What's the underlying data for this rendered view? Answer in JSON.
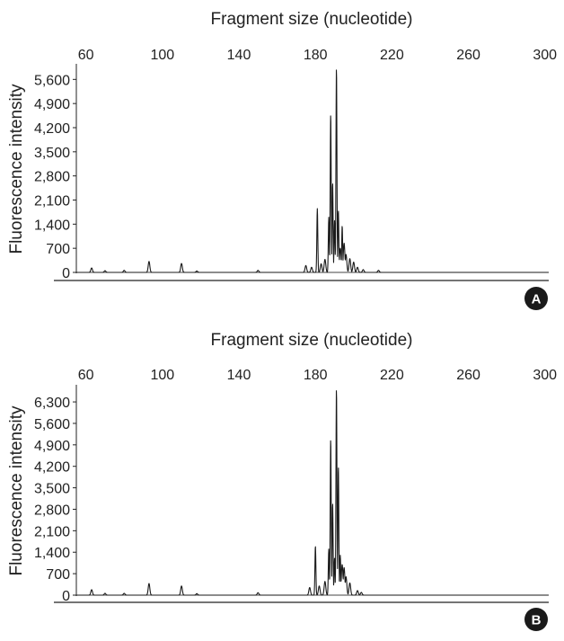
{
  "chart_data": [
    {
      "type": "line",
      "panel_label": "A",
      "xlabel": "Fragment size (nucleotide)",
      "ylabel": "Fluorescence intensity",
      "xlim": [
        55,
        302
      ],
      "ylim": [
        0,
        6000
      ],
      "xticks": [
        60,
        100,
        140,
        180,
        220,
        260,
        300
      ],
      "xtick_labels": [
        "60",
        "100",
        "140",
        "180",
        "220",
        "260",
        "300"
      ],
      "yticks": [
        0,
        700,
        1400,
        2100,
        2800,
        3500,
        4200,
        4900,
        5600
      ],
      "ytick_labels": [
        "0",
        "700",
        "1,400",
        "2,100",
        "2,800",
        "3,500",
        "4,200",
        "4,900",
        "5,600"
      ],
      "grid": false,
      "series": [
        {
          "peaks": [
            [
              63,
              130
            ],
            [
              70,
              50
            ],
            [
              80,
              60
            ],
            [
              93,
              320
            ],
            [
              110,
              260
            ],
            [
              118,
              40
            ],
            [
              150,
              60
            ],
            [
              175,
              200
            ],
            [
              178,
              150
            ],
            [
              181,
              1850
            ],
            [
              183,
              250
            ],
            [
              185,
              380
            ],
            [
              187,
              1600
            ],
            [
              188,
              4600
            ],
            [
              189,
              2600
            ],
            [
              190,
              1500
            ],
            [
              191,
              5950
            ],
            [
              192,
              1800
            ],
            [
              193,
              700
            ],
            [
              194,
              1350
            ],
            [
              195,
              850
            ],
            [
              196,
              520
            ],
            [
              198,
              400
            ],
            [
              200,
              300
            ],
            [
              202,
              150
            ],
            [
              205,
              80
            ],
            [
              213,
              60
            ]
          ]
        }
      ]
    },
    {
      "type": "line",
      "panel_label": "B",
      "xlabel": "Fragment size (nucleotide)",
      "ylabel": "Fluorescence intensity",
      "xlim": [
        55,
        302
      ],
      "ylim": [
        0,
        6800
      ],
      "xticks": [
        60,
        100,
        140,
        180,
        220,
        260,
        300
      ],
      "xtick_labels": [
        "60",
        "100",
        "140",
        "180",
        "220",
        "260",
        "300"
      ],
      "yticks": [
        0,
        700,
        1400,
        2100,
        2800,
        3500,
        4200,
        4900,
        5600,
        6300
      ],
      "ytick_labels": [
        "0",
        "700",
        "1,400",
        "2,100",
        "2,800",
        "3,500",
        "4,200",
        "4,900",
        "5,600",
        "6,300"
      ],
      "grid": false,
      "series": [
        {
          "peaks": [
            [
              63,
              180
            ],
            [
              70,
              60
            ],
            [
              80,
              60
            ],
            [
              93,
              380
            ],
            [
              110,
              300
            ],
            [
              118,
              50
            ],
            [
              150,
              80
            ],
            [
              177,
              250
            ],
            [
              180,
              1600
            ],
            [
              182,
              300
            ],
            [
              185,
              450
            ],
            [
              187,
              1500
            ],
            [
              188,
              5100
            ],
            [
              189,
              3000
            ],
            [
              190,
              1200
            ],
            [
              191,
              6750
            ],
            [
              192,
              4200
            ],
            [
              193,
              1300
            ],
            [
              194,
              1000
            ],
            [
              195,
              900
            ],
            [
              196,
              600
            ],
            [
              198,
              400
            ],
            [
              202,
              150
            ],
            [
              204,
              90
            ]
          ]
        }
      ]
    }
  ]
}
